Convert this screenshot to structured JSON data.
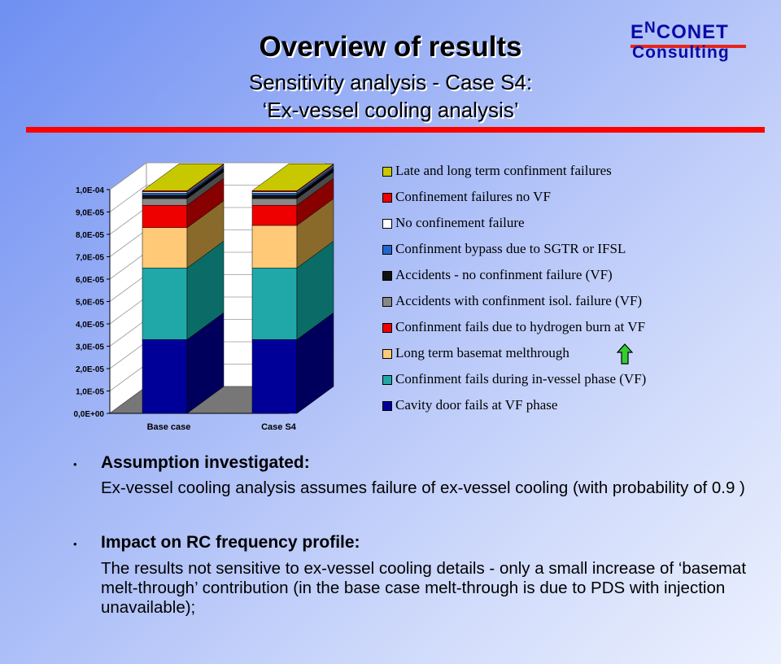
{
  "header": {
    "title": "Overview of results",
    "subtitle": "Sensitivity analysis - Case S4:",
    "subtitle2": "‘Ex-vessel cooling analysis’"
  },
  "logo": {
    "top": "ENCONET",
    "bottom": "Consulting"
  },
  "colors": {
    "accent_line": "#ff0000",
    "logo_text": "#0a0aa8"
  },
  "chart_data": {
    "type": "bar",
    "stacked": true,
    "three_d": true,
    "categories": [
      "Base case",
      "Case S4"
    ],
    "y_ticks": [
      "0,0E+00",
      "1,0E-05",
      "2,0E-05",
      "3,0E-05",
      "4,0E-05",
      "5,0E-05",
      "6,0E-05",
      "7,0E-05",
      "8,0E-05",
      "9,0E-05",
      "1,0E-04"
    ],
    "ylim": [
      0,
      0.0001
    ],
    "series": [
      {
        "name": "Cavity door fails at VF phase",
        "color": "#000099",
        "side": "#00005c",
        "values": [
          3.3e-05,
          3.3e-05
        ]
      },
      {
        "name": "Confinment fails during in-vessel phase (VF)",
        "color": "#20a8a8",
        "side": "#0b6b67",
        "values": [
          3.2e-05,
          3.2e-05
        ]
      },
      {
        "name": "Long term basemat melthrough",
        "color": "#ffc978",
        "side": "#8a6a2a",
        "values": [
          1.8e-05,
          1.9e-05
        ]
      },
      {
        "name": "Confinment fails due to hydrogen burn at VF",
        "color": "#ee0000",
        "side": "#880000",
        "values": [
          1e-05,
          9e-06
        ]
      },
      {
        "name": "Accidents with confinment isol. failure (VF)",
        "color": "#888888",
        "side": "#4a4a4a",
        "values": [
          3e-06,
          3e-06
        ]
      },
      {
        "name": "Accidents - no confinment failure (VF)",
        "color": "#111111",
        "side": "#000000",
        "values": [
          1.5e-06,
          1.5e-06
        ]
      },
      {
        "name": "Confinment bypass due to SGTR or IFSL",
        "color": "#2266cc",
        "side": "#133a77",
        "values": [
          1e-06,
          1e-06
        ]
      },
      {
        "name": "No confinement failure",
        "color": "#ffffff",
        "side": "#b0b0b0",
        "values": [
          5e-07,
          5e-07
        ]
      },
      {
        "name": "Confinement failures no VF",
        "color": "#ee0000",
        "side": "#880000",
        "values": [
          5e-07,
          5e-07
        ]
      },
      {
        "name": "Late and long term confinment failures",
        "color": "#c8c800",
        "side": "#7a7a00",
        "values": [
          0.0,
          0.0
        ]
      }
    ]
  },
  "legend_order": [
    9,
    8,
    7,
    6,
    5,
    4,
    3,
    2,
    1,
    0
  ],
  "bullets": [
    {
      "heading": "Assumption investigated:",
      "text": "Ex-vessel cooling analysis assumes failure of ex-vessel cooling (with probability of 0.9 )"
    },
    {
      "heading": "Impact on RC frequency profile:",
      "text": "The results not sensitive to ex-vessel cooling details - only a small increase of ‘basemat melt-through’ contribution (in the base case melt-through is due to PDS with injection unavailable);"
    }
  ],
  "bullet_glyph": "•"
}
